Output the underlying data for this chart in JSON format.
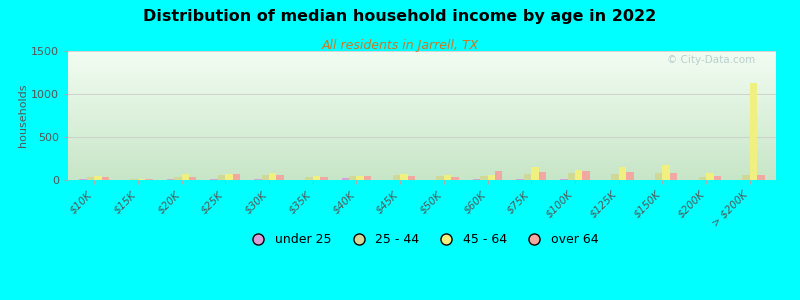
{
  "title": "Distribution of median household income by age in 2022",
  "subtitle": "All residents in Jarrell, TX",
  "ylabel": "households",
  "ylim": [
    0,
    1500
  ],
  "yticks": [
    0,
    500,
    1000,
    1500
  ],
  "background_color": "#00FFFF",
  "watermark": "© City-Data.com",
  "categories": [
    "$10K",
    "$15K",
    "$20K",
    "$25K",
    "$30K",
    "$35K",
    "$40K",
    "$45K",
    "$50K",
    "$60K",
    "$75K",
    "$100K",
    "$125K",
    "$150K",
    "$200K",
    "> $200K"
  ],
  "age_groups": [
    "under 25",
    "25 - 44",
    "45 - 64",
    "over 64"
  ],
  "colors": [
    "#d8a0d8",
    "#d0d898",
    "#f0f080",
    "#f0a8a0"
  ],
  "data": {
    "under 25": [
      10,
      5,
      10,
      10,
      10,
      5,
      25,
      5,
      5,
      8,
      8,
      8,
      5,
      5,
      5,
      5
    ],
    "25 - 44": [
      30,
      12,
      40,
      60,
      60,
      40,
      45,
      60,
      50,
      50,
      65,
      85,
      65,
      80,
      40,
      60
    ],
    "45 - 64": [
      50,
      15,
      65,
      70,
      85,
      50,
      50,
      70,
      55,
      55,
      148,
      120,
      155,
      175,
      85,
      1130
    ],
    "over 64": [
      30,
      10,
      35,
      70,
      60,
      35,
      45,
      50,
      40,
      110,
      95,
      105,
      95,
      80,
      50,
      55
    ]
  }
}
